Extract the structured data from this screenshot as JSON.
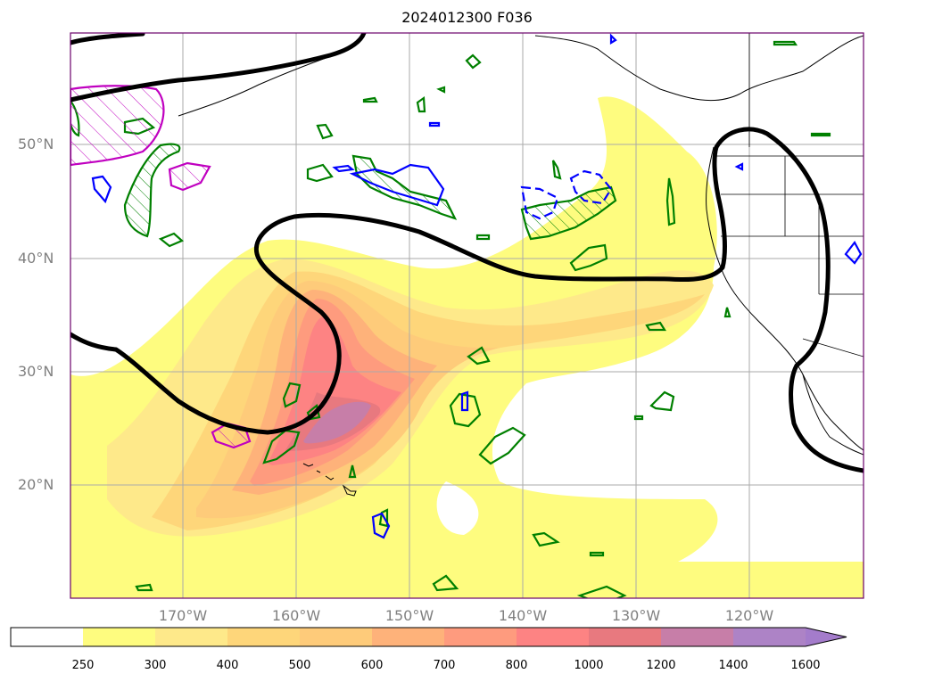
{
  "title": "2024012300 F036",
  "lat_labels": [
    "50°N",
    "40°N",
    "30°N",
    "20°N"
  ],
  "lon_labels": [
    "170°W",
    "160°W",
    "150°W",
    "140°W",
    "130°W",
    "120°W"
  ],
  "colorbar": {
    "ticks": [
      "250",
      "300",
      "400",
      "500",
      "600",
      "700",
      "800",
      "1000",
      "1200",
      "1400",
      "1600"
    ],
    "colors": [
      "#ffffff",
      "#fefc7f",
      "#fee98a",
      "#fed67a",
      "#fecb7a",
      "#feb27a",
      "#fe9b7e",
      "#fd8383",
      "#e8797f",
      "#c77ea8",
      "#ad83c6",
      "#a47ccb"
    ]
  },
  "contour_colors": {
    "jet": "#000000",
    "positive": "#008000",
    "negative": "#0000ff",
    "magenta": "#c000c0"
  }
}
